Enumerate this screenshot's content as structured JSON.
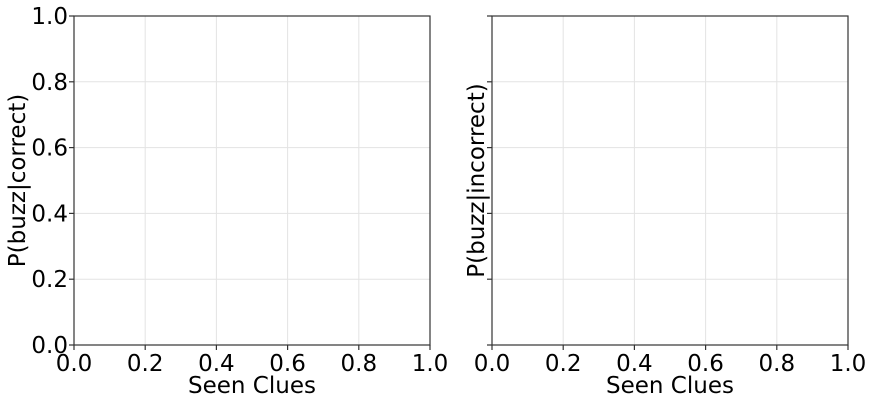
{
  "chart_data": [
    {
      "type": "line",
      "title": "",
      "xlabel": "Seen Clues",
      "ylabel": "P(buzz|correct)",
      "xlim": [
        0,
        1
      ],
      "ylim": [
        0,
        1
      ],
      "xticks": [
        "0.0",
        "0.2",
        "0.4",
        "0.6",
        "0.8",
        "1.0"
      ],
      "yticks": [
        "0.0",
        "0.2",
        "0.4",
        "0.6",
        "0.8",
        "1.0"
      ],
      "show_yticklabels": true,
      "grid": true,
      "series": []
    },
    {
      "type": "line",
      "title": "",
      "xlabel": "Seen Clues",
      "ylabel": "P(buzz|incorrect)",
      "xlim": [
        0,
        1
      ],
      "ylim": [
        0,
        1
      ],
      "xticks": [
        "0.0",
        "0.2",
        "0.4",
        "0.6",
        "0.8",
        "1.0"
      ],
      "yticks": [
        "0.0",
        "0.2",
        "0.4",
        "0.6",
        "0.8",
        "1.0"
      ],
      "show_yticklabels": false,
      "grid": true,
      "series": []
    }
  ]
}
